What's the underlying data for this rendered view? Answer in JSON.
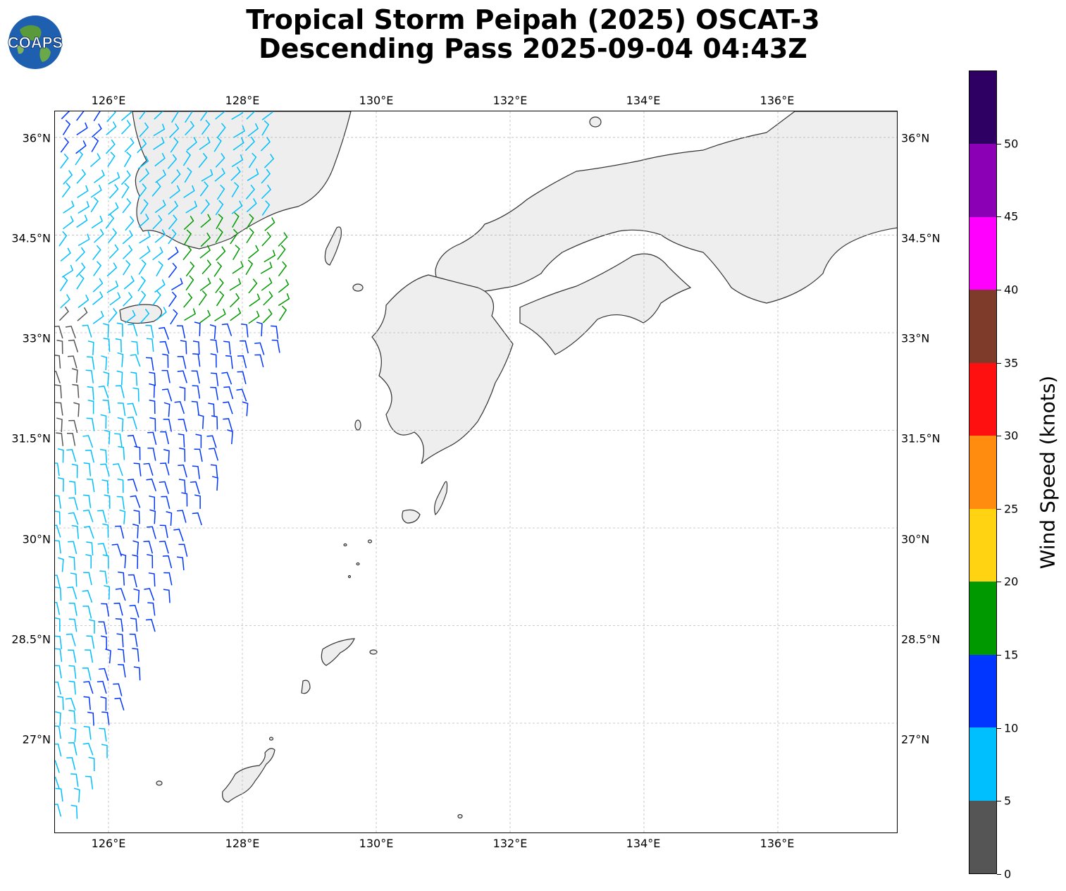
{
  "title": {
    "line1": "Tropical Storm Peipah (2025) OSCAT-3",
    "line2": "Descending Pass 2025-09-04 04:43Z"
  },
  "logo": {
    "text": "COAPS",
    "icon": "globe-logo-icon"
  },
  "map": {
    "lon_range": [
      125.2,
      137.8
    ],
    "lat_range": [
      25.3,
      36.4
    ],
    "lon_ticks": [
      {
        "value": 126,
        "label": "126°E"
      },
      {
        "value": 128,
        "label": "128°E"
      },
      {
        "value": 130,
        "label": "130°E"
      },
      {
        "value": 132,
        "label": "132°E"
      },
      {
        "value": 134,
        "label": "134°E"
      },
      {
        "value": 136,
        "label": "136°E"
      }
    ],
    "lat_ticks": [
      {
        "value": 36,
        "label": "36°N"
      },
      {
        "value": 34.5,
        "label": "34.5°N"
      },
      {
        "value": 33,
        "label": "33°N"
      },
      {
        "value": 31.5,
        "label": "31.5°N"
      },
      {
        "value": 30,
        "label": "30°N"
      },
      {
        "value": 28.5,
        "label": "28.5°N"
      },
      {
        "value": 27,
        "label": "27°N"
      }
    ],
    "land_color": "#eeeeee",
    "coast_color": "#333333",
    "grid_color": "#bbbbbb"
  },
  "colorbar": {
    "title": "Wind Speed (knots)",
    "tick_labels": [
      "0",
      "5",
      "10",
      "15",
      "20",
      "25",
      "30",
      "35",
      "40",
      "45",
      "50"
    ],
    "bins": [
      {
        "min": 0,
        "max": 5,
        "color": "#555555"
      },
      {
        "min": 5,
        "max": 10,
        "color": "#00bfff"
      },
      {
        "min": 10,
        "max": 15,
        "color": "#0036ff"
      },
      {
        "min": 15,
        "max": 20,
        "color": "#009900"
      },
      {
        "min": 20,
        "max": 25,
        "color": "#ffd311"
      },
      {
        "min": 25,
        "max": 30,
        "color": "#ff8c0f"
      },
      {
        "min": 30,
        "max": 35,
        "color": "#ff1010"
      },
      {
        "min": 35,
        "max": 40,
        "color": "#7f3b2a"
      },
      {
        "min": 40,
        "max": 45,
        "color": "#ff00ff"
      },
      {
        "min": 45,
        "max": 50,
        "color": "#8b00b4"
      },
      {
        "min": 50,
        "max": 55,
        "color": "#2e0063"
      }
    ]
  }
}
